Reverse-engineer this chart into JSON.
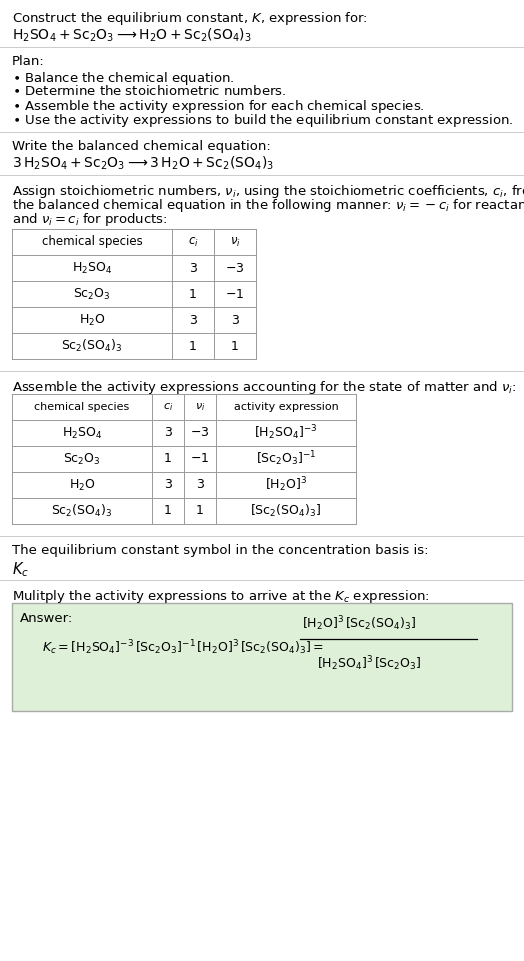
{
  "title_line1": "Construct the equilibrium constant, $K$, expression for:",
  "title_line2": "$\\mathrm{H_2SO_4 + Sc_2O_3 \\longrightarrow H_2O + Sc_2(SO_4)_3}$",
  "plan_header": "Plan:",
  "plan_items": [
    "$\\bullet$ Balance the chemical equation.",
    "$\\bullet$ Determine the stoichiometric numbers.",
    "$\\bullet$ Assemble the activity expression for each chemical species.",
    "$\\bullet$ Use the activity expressions to build the equilibrium constant expression."
  ],
  "balanced_header": "Write the balanced chemical equation:",
  "balanced_eq": "$\\mathrm{3\\,H_2SO_4 + Sc_2O_3 \\longrightarrow 3\\,H_2O + Sc_2(SO_4)_3}$",
  "stoich_header_parts": [
    "Assign stoichiometric numbers, $\\nu_i$, using the stoichiometric coefficients, $c_i$, from",
    "the balanced chemical equation in the following manner: $\\nu_i = -c_i$ for reactants",
    "and $\\nu_i = c_i$ for products:"
  ],
  "table1_cols": [
    "chemical species",
    "$c_i$",
    "$\\nu_i$"
  ],
  "table1_rows": [
    [
      "$\\mathrm{H_2SO_4}$",
      "3",
      "$-3$"
    ],
    [
      "$\\mathrm{Sc_2O_3}$",
      "1",
      "$-1$"
    ],
    [
      "$\\mathrm{H_2O}$",
      "3",
      "3"
    ],
    [
      "$\\mathrm{Sc_2(SO_4)_3}$",
      "1",
      "1"
    ]
  ],
  "activity_header": "Assemble the activity expressions accounting for the state of matter and $\\nu_i$:",
  "table2_cols": [
    "chemical species",
    "$c_i$",
    "$\\nu_i$",
    "activity expression"
  ],
  "table2_rows": [
    [
      "$\\mathrm{H_2SO_4}$",
      "3",
      "$-3$",
      "$[\\mathrm{H_2SO_4}]^{-3}$"
    ],
    [
      "$\\mathrm{Sc_2O_3}$",
      "1",
      "$-1$",
      "$[\\mathrm{Sc_2O_3}]^{-1}$"
    ],
    [
      "$\\mathrm{H_2O}$",
      "3",
      "3",
      "$[\\mathrm{H_2O}]^3$"
    ],
    [
      "$\\mathrm{Sc_2(SO_4)_3}$",
      "1",
      "1",
      "$[\\mathrm{Sc_2(SO_4)_3}]$"
    ]
  ],
  "kc_symbol_header": "The equilibrium constant symbol in the concentration basis is:",
  "kc_symbol": "$K_c$",
  "multiply_header": "Mulitply the activity expressions to arrive at the $K_c$ expression:",
  "answer_label": "Answer:",
  "kc_eq_line1": "$K_c = [\\mathrm{H_2SO_4}]^{-3}\\,[\\mathrm{Sc_2O_3}]^{-1}\\,[\\mathrm{H_2O}]^3\\,[\\mathrm{Sc_2(SO_4)_3}] = $",
  "kc_frac_num": "$[\\mathrm{H_2O}]^3\\,[\\mathrm{Sc_2(SO_4)_3}]$",
  "kc_frac_den": "$[\\mathrm{H_2SO_4}]^3\\,[\\mathrm{Sc_2O_3}]$",
  "bg_color": "#ffffff",
  "text_color": "#000000",
  "table_line_color": "#999999",
  "answer_box_bg": "#dff0d8",
  "answer_box_border": "#aaaaaa",
  "sep_line_color": "#cccccc",
  "font_size": 9.5
}
